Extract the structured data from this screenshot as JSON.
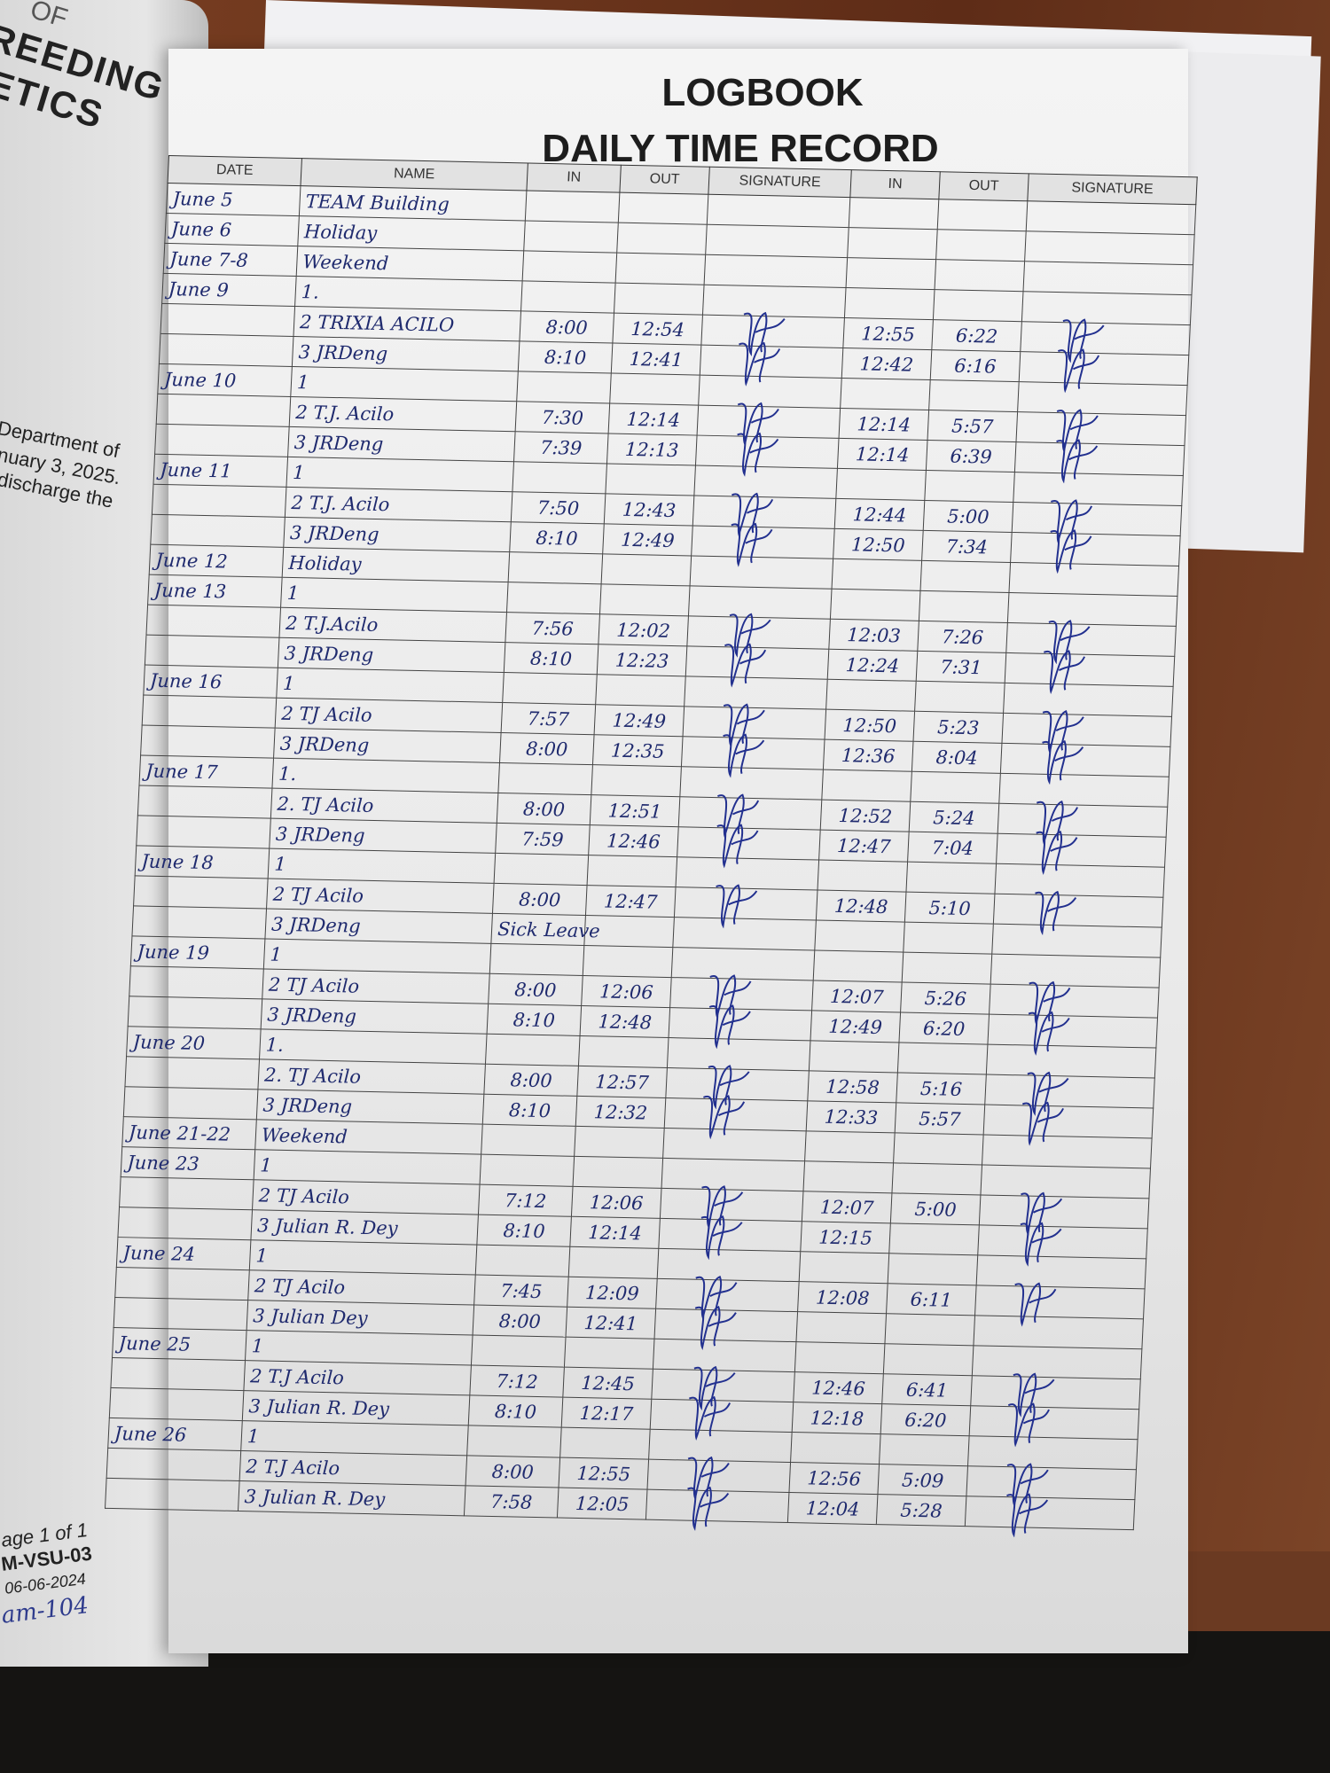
{
  "left_page": {
    "heading_lines": [
      "OF",
      "REEDING",
      "ETICS"
    ],
    "body_lines": [
      "Department of",
      "nuary 3, 2025.",
      "discharge the"
    ],
    "footer": {
      "page": "age 1 of 1",
      "code": "M-VSU-03",
      "date": "06-06-2024",
      "handwritten": "am-104"
    }
  },
  "logbook": {
    "title": "LOGBOOK",
    "subtitle": "DAILY TIME RECORD",
    "columns": [
      "DATE",
      "NAME",
      "IN",
      "OUT",
      "SIGNATURE",
      "IN",
      "OUT",
      "SIGNATURE"
    ],
    "ink_color": "#1f2a6e",
    "rows": [
      {
        "date": "June 5",
        "name": "TEAM Building",
        "am_in": "",
        "am_out": "",
        "am_signed": false,
        "pm_in": "",
        "pm_out": "",
        "pm_signed": false
      },
      {
        "date": "June 6",
        "name": "Holiday",
        "am_in": "",
        "am_out": "",
        "am_signed": false,
        "pm_in": "",
        "pm_out": "",
        "pm_signed": false
      },
      {
        "date": "June 7-8",
        "name": "Weekend",
        "am_in": "",
        "am_out": "",
        "am_signed": false,
        "pm_in": "",
        "pm_out": "",
        "pm_signed": false
      },
      {
        "date": "June 9",
        "name": "1.",
        "am_in": "",
        "am_out": "",
        "am_signed": false,
        "pm_in": "",
        "pm_out": "",
        "pm_signed": false
      },
      {
        "date": "",
        "name": "2 TRIXIA ACILO",
        "am_in": "8:00",
        "am_out": "12:54",
        "am_signed": true,
        "pm_in": "12:55",
        "pm_out": "6:22",
        "pm_signed": true
      },
      {
        "date": "",
        "name": "3 JRDeng",
        "am_in": "8:10",
        "am_out": "12:41",
        "am_signed": true,
        "pm_in": "12:42",
        "pm_out": "6:16",
        "pm_signed": true
      },
      {
        "date": "June 10",
        "name": "1",
        "am_in": "",
        "am_out": "",
        "am_signed": false,
        "pm_in": "",
        "pm_out": "",
        "pm_signed": false
      },
      {
        "date": "",
        "name": "2 T.J. Acilo",
        "am_in": "7:30",
        "am_out": "12:14",
        "am_signed": true,
        "pm_in": "12:14",
        "pm_out": "5:57",
        "pm_signed": true
      },
      {
        "date": "",
        "name": "3 JRDeng",
        "am_in": "7:39",
        "am_out": "12:13",
        "am_signed": true,
        "pm_in": "12:14",
        "pm_out": "6:39",
        "pm_signed": true
      },
      {
        "date": "June 11",
        "name": "1",
        "am_in": "",
        "am_out": "",
        "am_signed": false,
        "pm_in": "",
        "pm_out": "",
        "pm_signed": false
      },
      {
        "date": "",
        "name": "2 T.J. Acilo",
        "am_in": "7:50",
        "am_out": "12:43",
        "am_signed": true,
        "pm_in": "12:44",
        "pm_out": "5:00",
        "pm_signed": true
      },
      {
        "date": "",
        "name": "3 JRDeng",
        "am_in": "8:10",
        "am_out": "12:49",
        "am_signed": true,
        "pm_in": "12:50",
        "pm_out": "7:34",
        "pm_signed": true
      },
      {
        "date": "June 12",
        "name": "Holiday",
        "am_in": "",
        "am_out": "",
        "am_signed": false,
        "pm_in": "",
        "pm_out": "",
        "pm_signed": false
      },
      {
        "date": "June 13",
        "name": "1",
        "am_in": "",
        "am_out": "",
        "am_signed": false,
        "pm_in": "",
        "pm_out": "",
        "pm_signed": false
      },
      {
        "date": "",
        "name": "2 T.J.Acilo",
        "am_in": "7:56",
        "am_out": "12:02",
        "am_signed": true,
        "pm_in": "12:03",
        "pm_out": "7:26",
        "pm_signed": true
      },
      {
        "date": "",
        "name": "3 JRDeng",
        "am_in": "8:10",
        "am_out": "12:23",
        "am_signed": true,
        "pm_in": "12:24",
        "pm_out": "7:31",
        "pm_signed": true
      },
      {
        "date": "June 16",
        "name": "1",
        "am_in": "",
        "am_out": "",
        "am_signed": false,
        "pm_in": "",
        "pm_out": "",
        "pm_signed": false
      },
      {
        "date": "",
        "name": "2 TJ Acilo",
        "am_in": "7:57",
        "am_out": "12:49",
        "am_signed": true,
        "pm_in": "12:50",
        "pm_out": "5:23",
        "pm_signed": true
      },
      {
        "date": "",
        "name": "3 JRDeng",
        "am_in": "8:00",
        "am_out": "12:35",
        "am_signed": true,
        "pm_in": "12:36",
        "pm_out": "8:04",
        "pm_signed": true
      },
      {
        "date": "June 17",
        "name": "1.",
        "am_in": "",
        "am_out": "",
        "am_signed": false,
        "pm_in": "",
        "pm_out": "",
        "pm_signed": false
      },
      {
        "date": "",
        "name": "2. TJ Acilo",
        "am_in": "8:00",
        "am_out": "12:51",
        "am_signed": true,
        "pm_in": "12:52",
        "pm_out": "5:24",
        "pm_signed": true
      },
      {
        "date": "",
        "name": "3 JRDeng",
        "am_in": "7:59",
        "am_out": "12:46",
        "am_signed": true,
        "pm_in": "12:47",
        "pm_out": "7:04",
        "pm_signed": true
      },
      {
        "date": "June 18",
        "name": "1",
        "am_in": "",
        "am_out": "",
        "am_signed": false,
        "pm_in": "",
        "pm_out": "",
        "pm_signed": false
      },
      {
        "date": "",
        "name": "2 TJ Acilo",
        "am_in": "8:00",
        "am_out": "12:47",
        "am_signed": true,
        "pm_in": "12:48",
        "pm_out": "5:10",
        "pm_signed": true
      },
      {
        "date": "",
        "name": "3 JRDeng",
        "am_in": "Sick Leave",
        "am_out": "",
        "am_signed": false,
        "pm_in": "",
        "pm_out": "",
        "pm_signed": false
      },
      {
        "date": "June 19",
        "name": "1",
        "am_in": "",
        "am_out": "",
        "am_signed": false,
        "pm_in": "",
        "pm_out": "",
        "pm_signed": false
      },
      {
        "date": "",
        "name": "2 TJ Acilo",
        "am_in": "8:00",
        "am_out": "12:06",
        "am_signed": true,
        "pm_in": "12:07",
        "pm_out": "5:26",
        "pm_signed": true
      },
      {
        "date": "",
        "name": "3 JRDeng",
        "am_in": "8:10",
        "am_out": "12:48",
        "am_signed": true,
        "pm_in": "12:49",
        "pm_out": "6:20",
        "pm_signed": true
      },
      {
        "date": "June 20",
        "name": "1.",
        "am_in": "",
        "am_out": "",
        "am_signed": false,
        "pm_in": "",
        "pm_out": "",
        "pm_signed": false
      },
      {
        "date": "",
        "name": "2. TJ Acilo",
        "am_in": "8:00",
        "am_out": "12:57",
        "am_signed": true,
        "pm_in": "12:58",
        "pm_out": "5:16",
        "pm_signed": true
      },
      {
        "date": "",
        "name": "3 JRDeng",
        "am_in": "8:10",
        "am_out": "12:32",
        "am_signed": true,
        "pm_in": "12:33",
        "pm_out": "5:57",
        "pm_signed": true
      },
      {
        "date": "June 21-22",
        "name": "Weekend",
        "am_in": "",
        "am_out": "",
        "am_signed": false,
        "pm_in": "",
        "pm_out": "",
        "pm_signed": false
      },
      {
        "date": "June 23",
        "name": "1",
        "am_in": "",
        "am_out": "",
        "am_signed": false,
        "pm_in": "",
        "pm_out": "",
        "pm_signed": false
      },
      {
        "date": "",
        "name": "2 TJ Acilo",
        "am_in": "7:12",
        "am_out": "12:06",
        "am_signed": true,
        "pm_in": "12:07",
        "pm_out": "5:00",
        "pm_signed": true
      },
      {
        "date": "",
        "name": "3 Julian R. Dey",
        "am_in": "8:10",
        "am_out": "12:14",
        "am_signed": true,
        "pm_in": "12:15",
        "pm_out": "",
        "pm_signed": true
      },
      {
        "date": "June 24",
        "name": "1",
        "am_in": "",
        "am_out": "",
        "am_signed": false,
        "pm_in": "",
        "pm_out": "",
        "pm_signed": false
      },
      {
        "date": "",
        "name": "2 TJ Acilo",
        "am_in": "7:45",
        "am_out": "12:09",
        "am_signed": true,
        "pm_in": "12:08",
        "pm_out": "6:11",
        "pm_signed": true
      },
      {
        "date": "",
        "name": "3 Julian Dey",
        "am_in": "8:00",
        "am_out": "12:41",
        "am_signed": true,
        "pm_in": "",
        "pm_out": "",
        "pm_signed": false
      },
      {
        "date": "June 25",
        "name": "1",
        "am_in": "",
        "am_out": "",
        "am_signed": false,
        "pm_in": "",
        "pm_out": "",
        "pm_signed": false
      },
      {
        "date": "",
        "name": "2 T.J Acilo",
        "am_in": "7:12",
        "am_out": "12:45",
        "am_signed": true,
        "pm_in": "12:46",
        "pm_out": "6:41",
        "pm_signed": true
      },
      {
        "date": "",
        "name": "3 Julian R. Dey",
        "am_in": "8:10",
        "am_out": "12:17",
        "am_signed": true,
        "pm_in": "12:18",
        "pm_out": "6:20",
        "pm_signed": true
      },
      {
        "date": "June 26",
        "name": "1",
        "am_in": "",
        "am_out": "",
        "am_signed": false,
        "pm_in": "",
        "pm_out": "",
        "pm_signed": false
      },
      {
        "date": "",
        "name": "2 T.J Acilo",
        "am_in": "8:00",
        "am_out": "12:55",
        "am_signed": true,
        "pm_in": "12:56",
        "pm_out": "5:09",
        "pm_signed": true
      },
      {
        "date": "",
        "name": "3 Julian R. Dey",
        "am_in": "7:58",
        "am_out": "12:05",
        "am_signed": true,
        "pm_in": "12:04",
        "pm_out": "5:28",
        "pm_signed": true
      }
    ]
  }
}
